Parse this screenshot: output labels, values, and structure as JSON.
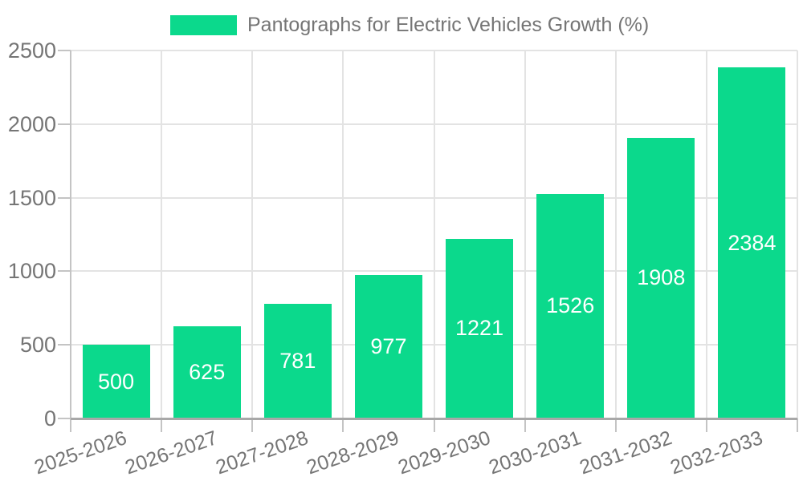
{
  "chart_data": {
    "type": "bar",
    "title": "",
    "legend": {
      "label": "Pantographs for Electric Vehicles Growth (%)",
      "position": "top-center"
    },
    "categories": [
      "2025-2026",
      "2026-2027",
      "2027-2028",
      "2028-2029",
      "2029-2030",
      "2030-2031",
      "2031-2032",
      "2032-2033"
    ],
    "values": [
      500,
      625,
      781,
      977,
      1221,
      1526,
      1908,
      2384
    ],
    "value_labels": [
      "500",
      "625",
      "781",
      "977",
      "1221",
      "1526",
      "1908",
      "2384"
    ],
    "xlabel": "",
    "ylabel": "",
    "ylim": [
      0,
      2500
    ],
    "yticks": [
      "0",
      "500",
      "1000",
      "1500",
      "2000",
      "2500"
    ],
    "grid": "both",
    "x_tick_rotation_deg": 19,
    "colors": {
      "bar": "#0bd98c",
      "bar_label": "#ffffff",
      "tick_text": "#757575",
      "grid": "#e3e3e3",
      "spine": "#c4c4c4",
      "x_axis": "#a8a8a8",
      "background": "#ffffff"
    }
  }
}
